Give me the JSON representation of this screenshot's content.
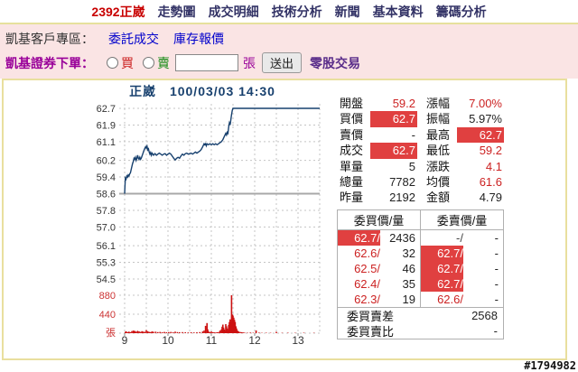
{
  "page": {
    "watermark": "#1794982"
  },
  "nav": {
    "stock_label": "2392正崴",
    "items": [
      "走勢圖",
      "成交明細",
      "技術分析",
      "新聞",
      "基本資料",
      "籌碼分析"
    ]
  },
  "client_bar": {
    "label": "凱基客戶專區：",
    "links": [
      "委託成交",
      "庫存報價"
    ]
  },
  "order_bar": {
    "label": "凱基證券下單：",
    "buy": "買",
    "sell": "賣",
    "qty_value": "",
    "unit": "張",
    "submit": "送出",
    "odd_lot": "零股交易"
  },
  "chart": {
    "title": "正崴",
    "datetime": "100/03/03 14:30"
  },
  "quote": {
    "rows": [
      {
        "l": "開盤",
        "lv": "59.2",
        "ls": "red",
        "r": "漲幅",
        "rv": "7.00%",
        "rs": "red"
      },
      {
        "l": "買價",
        "lv": "62.7",
        "ls": "hl",
        "r": "振幅",
        "rv": "5.97%",
        "rs": "dark"
      },
      {
        "l": "賣價",
        "lv": "-",
        "ls": "dark",
        "r": "最高",
        "rv": "62.7",
        "rs": "hl"
      },
      {
        "l": "成交",
        "lv": "62.7",
        "ls": "hl",
        "r": "最低",
        "rv": "59.2",
        "rs": "red"
      },
      {
        "l": "單量",
        "lv": "5",
        "ls": "dark",
        "r": "漲跌",
        "rv": "4.1",
        "rs": "red"
      },
      {
        "l": "總量",
        "lv": "7782",
        "ls": "dark",
        "r": "均價",
        "rv": "61.6",
        "rs": "red"
      },
      {
        "l": "昨量",
        "lv": "2192",
        "ls": "dark",
        "r": "金額",
        "rv": "4.79",
        "rs": "dark"
      }
    ]
  },
  "depth": {
    "buy_header": "委買價/量",
    "sell_header": "委賣價/量",
    "rows": [
      {
        "bp": "62.7",
        "bq": "2436",
        "bps": "hl",
        "sp": "-",
        "sq": "-",
        "sps": "dark"
      },
      {
        "bp": "62.6",
        "bq": "32",
        "bps": "red",
        "sp": "62.7",
        "sq": "-",
        "sps": "hl"
      },
      {
        "bp": "62.5",
        "bq": "46",
        "bps": "red",
        "sp": "62.7",
        "sq": "-",
        "sps": "hl"
      },
      {
        "bp": "62.4",
        "bq": "35",
        "bps": "red",
        "sp": "62.7",
        "sq": "-",
        "sps": "hl"
      },
      {
        "bp": "62.3",
        "bq": "19",
        "bps": "red",
        "sp": "62.6",
        "sq": "-",
        "sps": "red"
      }
    ],
    "diff_label": "委買賣差",
    "diff_value": "2568",
    "ratio_label": "委買賣比",
    "ratio_value": "-"
  },
  "chart_data": {
    "type": "line",
    "title": "正崴 100/03/03 14:30",
    "x_ticks": [
      "9",
      "10",
      "11",
      "12",
      "13"
    ],
    "session_start": "9:00",
    "session_end_min": 270,
    "price_ticks": [
      62.7,
      61.9,
      61.1,
      60.2,
      59.4,
      58.6,
      57.8,
      57.0,
      56.1,
      55.3,
      54.5
    ],
    "reference_price": 58.6,
    "limit_up": 62.7,
    "limit_down": 54.5,
    "volume_ticks": [
      880,
      440
    ],
    "volume_unit_label": "張",
    "grid": "dotted",
    "colors": {
      "line": "#17406e",
      "volume": "#cc1111",
      "reference": "#a8a8a8",
      "highlight_bg": "#e04040"
    },
    "price_series": [
      [
        0,
        58.6
      ],
      [
        1,
        59.35
      ],
      [
        2,
        59.3
      ],
      [
        3,
        59.45
      ],
      [
        4,
        59.4
      ],
      [
        5,
        59.5
      ],
      [
        6,
        59.45
      ],
      [
        7,
        59.55
      ],
      [
        8,
        59.6
      ],
      [
        9,
        59.75
      ],
      [
        10,
        59.9
      ],
      [
        11,
        60.05
      ],
      [
        12,
        60.15
      ],
      [
        13,
        60.3
      ],
      [
        14,
        60.25
      ],
      [
        15,
        60.35
      ],
      [
        16,
        60.2
      ],
      [
        17,
        60.3
      ],
      [
        18,
        60.45
      ],
      [
        19,
        60.3
      ],
      [
        20,
        60.25
      ],
      [
        21,
        60.35
      ],
      [
        22,
        60.25
      ],
      [
        23,
        60.3
      ],
      [
        24,
        60.4
      ],
      [
        25,
        60.5
      ],
      [
        26,
        60.6
      ],
      [
        27,
        60.7
      ],
      [
        28,
        60.78
      ],
      [
        29,
        60.85
      ],
      [
        30,
        60.8
      ],
      [
        31,
        60.88
      ],
      [
        32,
        60.7
      ],
      [
        33,
        60.75
      ],
      [
        34,
        60.6
      ],
      [
        35,
        60.5
      ],
      [
        36,
        60.58
      ],
      [
        37,
        60.45
      ],
      [
        38,
        60.55
      ],
      [
        39,
        60.5
      ],
      [
        40,
        60.45
      ],
      [
        42,
        60.52
      ],
      [
        44,
        60.45
      ],
      [
        46,
        60.5
      ],
      [
        48,
        60.55
      ],
      [
        50,
        60.5
      ],
      [
        52,
        60.45
      ],
      [
        54,
        60.5
      ],
      [
        56,
        60.52
      ],
      [
        58,
        60.45
      ],
      [
        60,
        60.5
      ],
      [
        62,
        60.55
      ],
      [
        64,
        60.5
      ],
      [
        66,
        60.4
      ],
      [
        68,
        60.3
      ],
      [
        70,
        60.22
      ],
      [
        72,
        60.3
      ],
      [
        74,
        60.35
      ],
      [
        76,
        60.3
      ],
      [
        78,
        60.42
      ],
      [
        80,
        60.5
      ],
      [
        82,
        60.45
      ],
      [
        84,
        60.52
      ],
      [
        86,
        60.55
      ],
      [
        88,
        60.5
      ],
      [
        90,
        60.52
      ],
      [
        92,
        60.55
      ],
      [
        94,
        60.5
      ],
      [
        96,
        60.55
      ],
      [
        98,
        60.6
      ],
      [
        100,
        60.55
      ],
      [
        102,
        60.6
      ],
      [
        104,
        60.65
      ],
      [
        106,
        60.72
      ],
      [
        108,
        60.85
      ],
      [
        110,
        61.0
      ],
      [
        111,
        60.95
      ],
      [
        112,
        61.0
      ],
      [
        113,
        60.9
      ],
      [
        114,
        61.0
      ],
      [
        116,
        60.95
      ],
      [
        118,
        61.0
      ],
      [
        120,
        60.95
      ],
      [
        122,
        61.0
      ],
      [
        124,
        60.95
      ],
      [
        126,
        61.0
      ],
      [
        128,
        60.95
      ],
      [
        130,
        61.0
      ],
      [
        132,
        61.05
      ],
      [
        134,
        61.1
      ],
      [
        136,
        61.2
      ],
      [
        138,
        61.35
      ],
      [
        140,
        61.5
      ],
      [
        141,
        61.42
      ],
      [
        142,
        61.55
      ],
      [
        143,
        61.5
      ],
      [
        144,
        61.8
      ],
      [
        145,
        62.0
      ],
      [
        146,
        61.9
      ],
      [
        147,
        62.15
      ],
      [
        148,
        62.4
      ],
      [
        149,
        62.6
      ],
      [
        150,
        62.7
      ],
      [
        270,
        62.7
      ]
    ],
    "volume_series": [
      [
        1,
        30
      ],
      [
        2,
        45
      ],
      [
        4,
        25
      ],
      [
        6,
        35
      ],
      [
        8,
        22
      ],
      [
        10,
        48
      ],
      [
        12,
        60
      ],
      [
        13,
        40
      ],
      [
        14,
        52
      ],
      [
        16,
        36
      ],
      [
        18,
        55
      ],
      [
        20,
        42
      ],
      [
        22,
        30
      ],
      [
        24,
        46
      ],
      [
        26,
        36
      ],
      [
        28,
        30
      ],
      [
        30,
        72
      ],
      [
        32,
        46
      ],
      [
        34,
        30
      ],
      [
        36,
        26
      ],
      [
        38,
        42
      ],
      [
        40,
        32
      ],
      [
        43,
        36
      ],
      [
        46,
        26
      ],
      [
        49,
        30
      ],
      [
        52,
        22
      ],
      [
        55,
        30
      ],
      [
        58,
        22
      ],
      [
        61,
        26
      ],
      [
        64,
        30
      ],
      [
        67,
        22
      ],
      [
        70,
        36
      ],
      [
        73,
        26
      ],
      [
        76,
        22
      ],
      [
        80,
        26
      ],
      [
        84,
        20
      ],
      [
        88,
        16
      ],
      [
        92,
        20
      ],
      [
        96,
        16
      ],
      [
        100,
        20
      ],
      [
        104,
        26
      ],
      [
        108,
        40
      ],
      [
        110,
        60
      ],
      [
        112,
        170
      ],
      [
        114,
        235
      ],
      [
        115,
        90
      ],
      [
        116,
        45
      ],
      [
        118,
        25
      ],
      [
        120,
        40
      ],
      [
        122,
        22
      ],
      [
        124,
        18
      ],
      [
        126,
        15
      ],
      [
        128,
        20
      ],
      [
        130,
        25
      ],
      [
        132,
        60
      ],
      [
        134,
        90
      ],
      [
        135,
        150
      ],
      [
        136,
        200
      ],
      [
        137,
        130
      ],
      [
        138,
        85
      ],
      [
        139,
        60
      ],
      [
        140,
        210
      ],
      [
        141,
        160
      ],
      [
        142,
        110
      ],
      [
        143,
        70
      ],
      [
        144,
        190
      ],
      [
        145,
        260
      ],
      [
        146,
        320
      ],
      [
        147,
        260
      ],
      [
        148,
        880
      ],
      [
        149,
        430
      ],
      [
        150,
        410
      ],
      [
        151,
        360
      ],
      [
        152,
        310
      ],
      [
        153,
        260
      ],
      [
        154,
        160
      ],
      [
        155,
        110
      ],
      [
        156,
        65
      ],
      [
        157,
        45
      ],
      [
        158,
        35
      ],
      [
        160,
        28
      ],
      [
        162,
        22
      ],
      [
        164,
        16
      ],
      [
        166,
        12
      ],
      [
        170,
        10
      ],
      [
        174,
        14
      ],
      [
        178,
        10
      ],
      [
        182,
        62
      ],
      [
        186,
        12
      ],
      [
        190,
        8
      ],
      [
        196,
        10
      ],
      [
        202,
        8
      ],
      [
        210,
        32
      ],
      [
        218,
        8
      ],
      [
        226,
        10
      ],
      [
        236,
        8
      ],
      [
        248,
        10
      ],
      [
        262,
        8
      ]
    ]
  }
}
